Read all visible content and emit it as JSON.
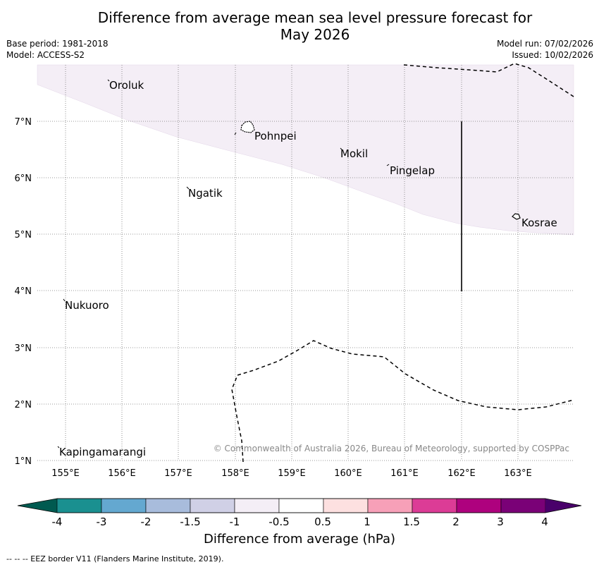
{
  "header": {
    "title_line1": "Difference from average mean sea level pressure forecast for",
    "title_line2": "May 2026",
    "base_period": "Base period: 1981-2018",
    "model": "Model: ACCESS-S2",
    "model_run": "Model run: 07/02/2026",
    "issued": "Issued: 10/02/2026"
  },
  "map": {
    "lat_labels": [
      "7°N",
      "6°N",
      "5°N",
      "4°N",
      "3°N",
      "2°N",
      "1°N"
    ],
    "lon_labels": [
      "155°E",
      "156°E",
      "157°E",
      "158°E",
      "159°E",
      "160°E",
      "161°E",
      "162°E",
      "163°E"
    ],
    "places": {
      "oroluk": "Oroluk",
      "pohnpei": "Pohnpei",
      "mokil": "Mokil",
      "pingelap": "Pingelap",
      "ngatik": "Ngatik",
      "kosrae": "Kosrae",
      "nukuoro": "Nukuoro",
      "kapingamarangi": "Kapingamarangi"
    },
    "copyright": "© Commonwealth of Australia 2026, Bureau of Meteorology, supported by COSPPac",
    "shaded_anomaly_class": "-1 to -0.5",
    "shade_color": "#f4eef6"
  },
  "colorbar": {
    "ticks": [
      "-4",
      "-3",
      "-2",
      "-1.5",
      "-1",
      "-0.5",
      "0.5",
      "1",
      "1.5",
      "2",
      "3",
      "4"
    ],
    "colors": [
      "#005a50",
      "#1a9090",
      "#64a8d0",
      "#a8bcdc",
      "#d0d0e6",
      "#f4eef6",
      "#ffffff",
      "#fde0e0",
      "#f7a0b8",
      "#dc3c96",
      "#ae017e",
      "#7a0177",
      "#49006a"
    ],
    "label": "Difference from average (hPa)"
  },
  "footer": {
    "eez_note": "--  --  -- EEZ border V11 (Flanders Marine Institute, 2019)."
  }
}
